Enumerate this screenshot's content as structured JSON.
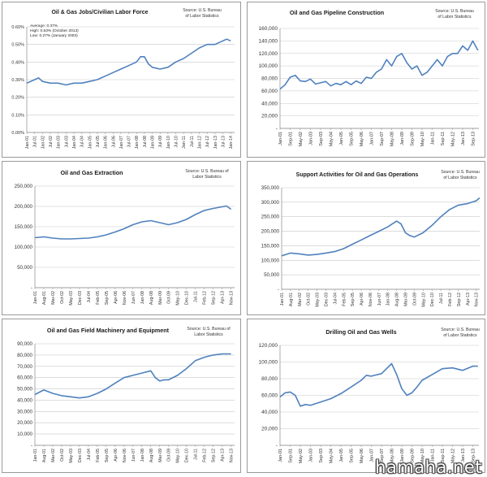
{
  "watermark": "hamaha.net",
  "chart_data": [
    {
      "type": "line",
      "title": "Oil & Gas Jobs/Civilian Labor Force",
      "source": [
        "Source: U.S. Bureau",
        "of Labor Statistics"
      ],
      "notes": [
        "Average: 0.37%",
        "High: 0.53% (October 2013)",
        "Low: 0.27% (January 2003)"
      ],
      "y_ticks": [
        "0.00%",
        "0.10%",
        "0.20%",
        "0.30%",
        "0.40%",
        "0.50%",
        "0.60%"
      ],
      "ylim": [
        0,
        0.6
      ],
      "x_ticks": [
        "Jan-01",
        "Jul-01",
        "Jan-02",
        "Jul-02",
        "Jan-03",
        "Jul-03",
        "Jan-04",
        "Jul-04",
        "Jan-05",
        "Jul-05",
        "Jan-06",
        "Jul-06",
        "Jan-07",
        "Jul-07",
        "Jan-08",
        "Jul-08",
        "Jan-09",
        "Jul-09",
        "Jan-10",
        "Jul-10",
        "Jan-11",
        "Jul-11",
        "Jan-12",
        "Jul-12",
        "Jan-13",
        "Jul-13",
        "Jan-14"
      ],
      "x_range": [
        0,
        26.5
      ],
      "series": [
        {
          "x": [
            0,
            1,
            1.5,
            2,
            3,
            4,
            5,
            6,
            7,
            8,
            9,
            10,
            11,
            12,
            13,
            14,
            14.5,
            15,
            15.5,
            16,
            17,
            18,
            19,
            20,
            21,
            22,
            23,
            24,
            25,
            25.5,
            26
          ],
          "values": [
            0.28,
            0.3,
            0.31,
            0.29,
            0.28,
            0.28,
            0.27,
            0.28,
            0.28,
            0.29,
            0.3,
            0.32,
            0.34,
            0.36,
            0.38,
            0.4,
            0.43,
            0.43,
            0.39,
            0.37,
            0.36,
            0.37,
            0.4,
            0.42,
            0.45,
            0.48,
            0.5,
            0.5,
            0.52,
            0.53,
            0.52
          ]
        }
      ]
    },
    {
      "type": "line",
      "title": "Oil and Gas Pipeline Construction",
      "source": [
        "Source: U.S. Bureau",
        "of Labor Statistics"
      ],
      "y_ticks": [
        "-",
        "20,000",
        "40,000",
        "60,000",
        "80,000",
        "100,000",
        "120,000",
        "140,000",
        "160,000"
      ],
      "ylim": [
        0,
        160000
      ],
      "x_ticks": [
        "Jan-01",
        "Sep-01",
        "May-02",
        "Jan-03",
        "Sep-03",
        "May-04",
        "Jan-05",
        "Sep-05",
        "May-06",
        "Jan-07",
        "Sep-07",
        "May-08",
        "Jan-09",
        "Sep-09",
        "May-10",
        "Jan-11",
        "Sep-11",
        "May-12",
        "Jan-13",
        "Sep-13"
      ],
      "x_range": [
        0,
        19.6
      ],
      "series": [
        {
          "x": [
            0,
            0.5,
            1,
            1.5,
            2,
            2.5,
            3,
            3.5,
            4,
            4.5,
            5,
            5.5,
            6,
            6.5,
            7,
            7.5,
            8,
            8.5,
            9,
            9.5,
            10,
            10.5,
            11,
            11.5,
            12,
            12.5,
            13,
            13.5,
            14,
            14.5,
            15,
            15.5,
            16,
            16.5,
            17,
            17.5,
            18,
            18.5,
            19,
            19.5
          ],
          "values": [
            63000,
            70000,
            82000,
            85000,
            76000,
            75000,
            79000,
            71000,
            73000,
            75000,
            68000,
            72000,
            70000,
            75000,
            70000,
            76000,
            72000,
            82000,
            80000,
            90000,
            95000,
            110000,
            100000,
            115000,
            120000,
            105000,
            95000,
            100000,
            85000,
            90000,
            100000,
            110000,
            100000,
            115000,
            120000,
            120000,
            132000,
            125000,
            140000,
            125000
          ]
        }
      ]
    },
    {
      "type": "line",
      "title": "Oil and Gas Extraction",
      "source": [
        "Source: U.S. Bureau of",
        "Labor Statistics"
      ],
      "y_ticks": [
        "-",
        "50,000",
        "100,000",
        "150,000",
        "200,000",
        "250,000"
      ],
      "ylim": [
        0,
        250000
      ],
      "x_ticks": [
        "Jan-01",
        "Aug-01",
        "Mar-02",
        "Oct-02",
        "May-03",
        "Dec-03",
        "Jul-04",
        "Feb-05",
        "Sep-05",
        "Apr-06",
        "Nov-06",
        "Jun-07",
        "Jan-08",
        "Aug-08",
        "Mar-09",
        "Oct-09",
        "May-10",
        "Dec-10",
        "Jul-11",
        "Feb-12",
        "Sep-12",
        "Apr-13",
        "Nov-13"
      ],
      "x_range": [
        0,
        22.4
      ],
      "series": [
        {
          "x": [
            0,
            1,
            2,
            3,
            4,
            5,
            6,
            7,
            8,
            9,
            10,
            11,
            12,
            13,
            14,
            15,
            16,
            17,
            18,
            19,
            20,
            21,
            21.5,
            22
          ],
          "values": [
            123000,
            125000,
            122000,
            120000,
            120000,
            121000,
            122000,
            125000,
            130000,
            137000,
            145000,
            155000,
            162000,
            165000,
            160000,
            155000,
            160000,
            168000,
            180000,
            190000,
            195000,
            199000,
            201000,
            193000
          ]
        }
      ]
    },
    {
      "type": "line",
      "title": "Support Activities for Oil and Gas Operations",
      "source": [
        "Source: U.S. Bureau",
        "of Labor Statistics"
      ],
      "y_ticks": [
        "-",
        "50,000",
        "100,000",
        "150,000",
        "200,000",
        "250,000",
        "300,000",
        "350,000"
      ],
      "ylim": [
        0,
        350000
      ],
      "x_ticks": [
        "Jan-01",
        "Aug-01",
        "Mar-02",
        "Oct-02",
        "May-03",
        "Dec-03",
        "Jul-04",
        "Feb-05",
        "Sep-05",
        "Apr-06",
        "Nov-06",
        "Jun-07",
        "Jan-08",
        "Aug-08",
        "Mar-09",
        "Oct-09",
        "May-10",
        "Dec-10",
        "Jul-11",
        "Feb-12",
        "Sep-12",
        "Apr-13",
        "Nov-13"
      ],
      "x_range": [
        0,
        22.4
      ],
      "series": [
        {
          "x": [
            0,
            1,
            2,
            3,
            4,
            5,
            6,
            7,
            8,
            9,
            10,
            11,
            12,
            13,
            13.5,
            14,
            14.5,
            15,
            16,
            17,
            18,
            19,
            20,
            21,
            22,
            22.4
          ],
          "values": [
            115000,
            125000,
            122000,
            118000,
            120000,
            125000,
            130000,
            140000,
            155000,
            170000,
            185000,
            200000,
            215000,
            235000,
            225000,
            195000,
            185000,
            180000,
            195000,
            220000,
            250000,
            275000,
            290000,
            295000,
            305000,
            315000
          ]
        }
      ]
    },
    {
      "type": "line",
      "title": "Oil and Gas Field Machinery and Equipment",
      "source": [
        "Source: U.S. Bureau of",
        "Labor Statistics"
      ],
      "y_ticks": [
        "-",
        "10,000",
        "20,000",
        "30,000",
        "40,000",
        "50,000",
        "60,000",
        "70,000",
        "80,000",
        "90,000"
      ],
      "ylim": [
        0,
        90000
      ],
      "x_ticks": [
        "Jan-01",
        "Aug-01",
        "Mar-02",
        "Oct-02",
        "May-03",
        "Dec-03",
        "Jul-04",
        "Feb-05",
        "Sep-05",
        "Apr-06",
        "Nov-06",
        "Jun-07",
        "Jan-08",
        "Aug-08",
        "Mar-09",
        "Oct-09",
        "May-10",
        "Dec-10",
        "Jul-11",
        "Feb-12",
        "Sep-12",
        "Apr-13",
        "Nov-13"
      ],
      "x_range": [
        0,
        22.4
      ],
      "series": [
        {
          "x": [
            0,
            1,
            2,
            3,
            4,
            5,
            6,
            7,
            8,
            9,
            10,
            11,
            12,
            13,
            13.5,
            14,
            14.5,
            15,
            16,
            17,
            18,
            19,
            20,
            21,
            22
          ],
          "values": [
            45000,
            49000,
            46000,
            44000,
            43000,
            42000,
            43000,
            46000,
            50000,
            55000,
            60000,
            62000,
            64000,
            66000,
            60000,
            57000,
            58000,
            58000,
            62000,
            68000,
            75000,
            78000,
            80000,
            81000,
            81000
          ]
        }
      ]
    },
    {
      "type": "line",
      "title": "Drilling Oil and Gas Wells",
      "source": [
        "Source: U.S. Bureau",
        "of Labor Statistics"
      ],
      "y_ticks": [
        "-",
        "20,000",
        "40,000",
        "60,000",
        "80,000",
        "100,000",
        "120,000"
      ],
      "ylim": [
        0,
        120000
      ],
      "x_ticks": [
        "Jan-01",
        "Sep-01",
        "May-02",
        "Jan-03",
        "Sep-03",
        "May-04",
        "Jan-05",
        "Sep-05",
        "May-06",
        "Jan-07",
        "Sep-07",
        "May-08",
        "Jan-09",
        "Sep-09",
        "May-10",
        "Jan-11",
        "Sep-11",
        "May-12",
        "Jan-13",
        "Sep-13"
      ],
      "x_range": [
        0,
        19.6
      ],
      "series": [
        {
          "x": [
            0,
            0.5,
            1,
            1.5,
            2,
            2.5,
            3,
            4,
            5,
            6,
            7,
            8,
            8.5,
            9,
            10,
            10.5,
            11,
            11.5,
            12,
            12.5,
            13,
            13.5,
            14,
            15,
            16,
            17,
            18,
            19,
            19.5
          ],
          "values": [
            58000,
            63000,
            64000,
            60000,
            47000,
            49000,
            48000,
            52000,
            56000,
            62000,
            70000,
            78000,
            84000,
            83000,
            86000,
            92000,
            98000,
            85000,
            68000,
            60000,
            63000,
            70000,
            78000,
            85000,
            92000,
            93000,
            90000,
            95000,
            95000
          ]
        }
      ]
    }
  ]
}
